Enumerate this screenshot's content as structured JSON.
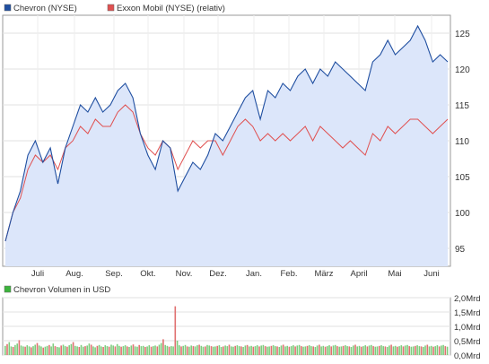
{
  "chart_data": [
    {
      "type": "line",
      "legend": [
        {
          "name": "Chevron (NYSE)",
          "color": "#1f4ea0"
        },
        {
          "name": "Exxon Mobil (NYSE) (relativ)",
          "color": "#e05050"
        }
      ],
      "x_labels": [
        "Juli",
        "Aug.",
        "Sep.",
        "Okt.",
        "Nov.",
        "Dez.",
        "Jan.",
        "Feb.",
        "März",
        "April",
        "Mai",
        "Juni"
      ],
      "y_ticks": [
        95,
        100,
        105,
        110,
        115,
        120,
        125
      ],
      "ylim": [
        92.5,
        127.5
      ],
      "grid": true,
      "legend_position": "top-left",
      "area_fill_color": "#dce6fa",
      "series": [
        {
          "name": "Chevron (NYSE)",
          "color": "#1f4ea0",
          "values": [
            96,
            100,
            103,
            108,
            110,
            107,
            109,
            104,
            109,
            112,
            115,
            114,
            116,
            114,
            115,
            117,
            118,
            116,
            111,
            108,
            106,
            110,
            109,
            103,
            105,
            107,
            106,
            108,
            111,
            110,
            112,
            114,
            116,
            117,
            113,
            117,
            116,
            118,
            117,
            119,
            120,
            118,
            120,
            119,
            121,
            120,
            119,
            118,
            117,
            121,
            122,
            124,
            122,
            123,
            124,
            126,
            124,
            121,
            122,
            121
          ]
        },
        {
          "name": "Exxon Mobil (NYSE) (relativ)",
          "color": "#e05050",
          "values": [
            96,
            100,
            102,
            106,
            108,
            107,
            108,
            106,
            109,
            110,
            112,
            111,
            113,
            112,
            112,
            114,
            115,
            114,
            111,
            109,
            108,
            110,
            109,
            106,
            108,
            110,
            109,
            110,
            110,
            108,
            110,
            112,
            113,
            112,
            110,
            111,
            110,
            111,
            110,
            111,
            112,
            110,
            112,
            111,
            110,
            109,
            110,
            109,
            108,
            111,
            110,
            112,
            111,
            112,
            113,
            113,
            112,
            111,
            112,
            113
          ]
        }
      ]
    },
    {
      "type": "bar",
      "legend": [
        {
          "name": "Chevron Volumen in USD",
          "color": "#3cb43c"
        }
      ],
      "y_tick_labels": [
        "2,0Mrd",
        "1,5Mrd",
        "1,0Mrd",
        "0,5Mrd",
        "0,0Mrd"
      ],
      "ylim": [
        0,
        2.0
      ],
      "grid": true,
      "bar_colors": {
        "up": "#7ccc7c",
        "down": "#e07070"
      },
      "values": [
        0.32,
        0.38,
        0.45,
        0.3,
        0.28,
        0.35,
        0.4,
        0.52,
        0.33,
        0.3,
        0.29,
        0.34,
        0.3,
        0.27,
        0.31,
        0.36,
        0.42,
        0.33,
        0.3,
        0.26,
        0.29,
        0.32,
        0.35,
        0.3,
        0.4,
        0.31,
        0.28,
        0.27,
        0.33,
        0.36,
        0.31,
        0.29,
        0.34,
        0.38,
        0.45,
        0.32,
        0.3,
        0.28,
        0.35,
        0.29,
        0.31,
        0.33,
        0.4,
        0.36,
        0.3,
        0.27,
        0.32,
        0.35,
        0.3,
        0.28,
        0.34,
        0.31,
        0.29,
        0.36,
        0.33,
        0.3,
        0.38,
        0.32,
        0.29,
        0.31,
        0.34,
        0.3,
        0.28,
        0.33,
        0.37,
        0.3,
        0.29,
        0.35,
        0.31,
        0.32,
        0.28,
        0.3,
        0.34,
        0.29,
        0.31,
        0.33,
        0.3,
        0.36,
        0.42,
        0.55,
        0.35,
        0.32,
        0.29,
        0.31,
        0.3,
        1.7,
        0.5,
        0.34,
        0.3,
        0.32,
        0.35,
        0.3,
        0.29,
        0.33,
        0.31,
        0.3,
        0.34,
        0.36,
        0.32,
        0.29,
        0.3,
        0.35,
        0.33,
        0.31,
        0.29,
        0.3,
        0.32,
        0.34,
        0.28,
        0.3,
        0.33,
        0.31,
        0.36,
        0.3,
        0.29,
        0.32,
        0.34,
        0.31,
        0.3,
        0.28,
        0.33,
        0.35,
        0.3,
        0.32,
        0.29,
        0.31,
        0.34,
        0.3,
        0.33,
        0.35,
        0.31,
        0.29,
        0.3,
        0.32,
        0.34,
        0.31,
        0.3,
        0.28,
        0.33,
        0.36,
        0.3,
        0.32,
        0.29,
        0.31,
        0.34,
        0.3,
        0.33,
        0.35,
        0.31,
        0.29,
        0.3,
        0.32,
        0.34,
        0.31,
        0.3,
        0.28,
        0.33,
        0.36,
        0.3,
        0.32,
        0.29,
        0.31,
        0.34,
        0.3,
        0.33,
        0.35,
        0.31,
        0.29,
        0.3,
        0.32,
        0.34,
        0.31,
        0.3,
        0.28,
        0.33,
        0.36,
        0.3,
        0.32,
        0.29,
        0.31,
        0.34,
        0.3,
        0.33,
        0.35,
        0.31,
        0.29,
        0.3,
        0.32,
        0.34,
        0.31,
        0.3,
        0.28,
        0.33,
        0.36,
        0.3,
        0.32,
        0.29,
        0.31,
        0.34,
        0.3,
        0.33,
        0.35,
        0.31,
        0.29,
        0.3,
        0.32,
        0.34,
        0.31,
        0.3,
        0.28,
        0.33,
        0.36,
        0.3,
        0.32,
        0.29,
        0.31,
        0.34,
        0.3,
        0.33,
        0.35,
        0.31,
        0.29
      ]
    }
  ]
}
